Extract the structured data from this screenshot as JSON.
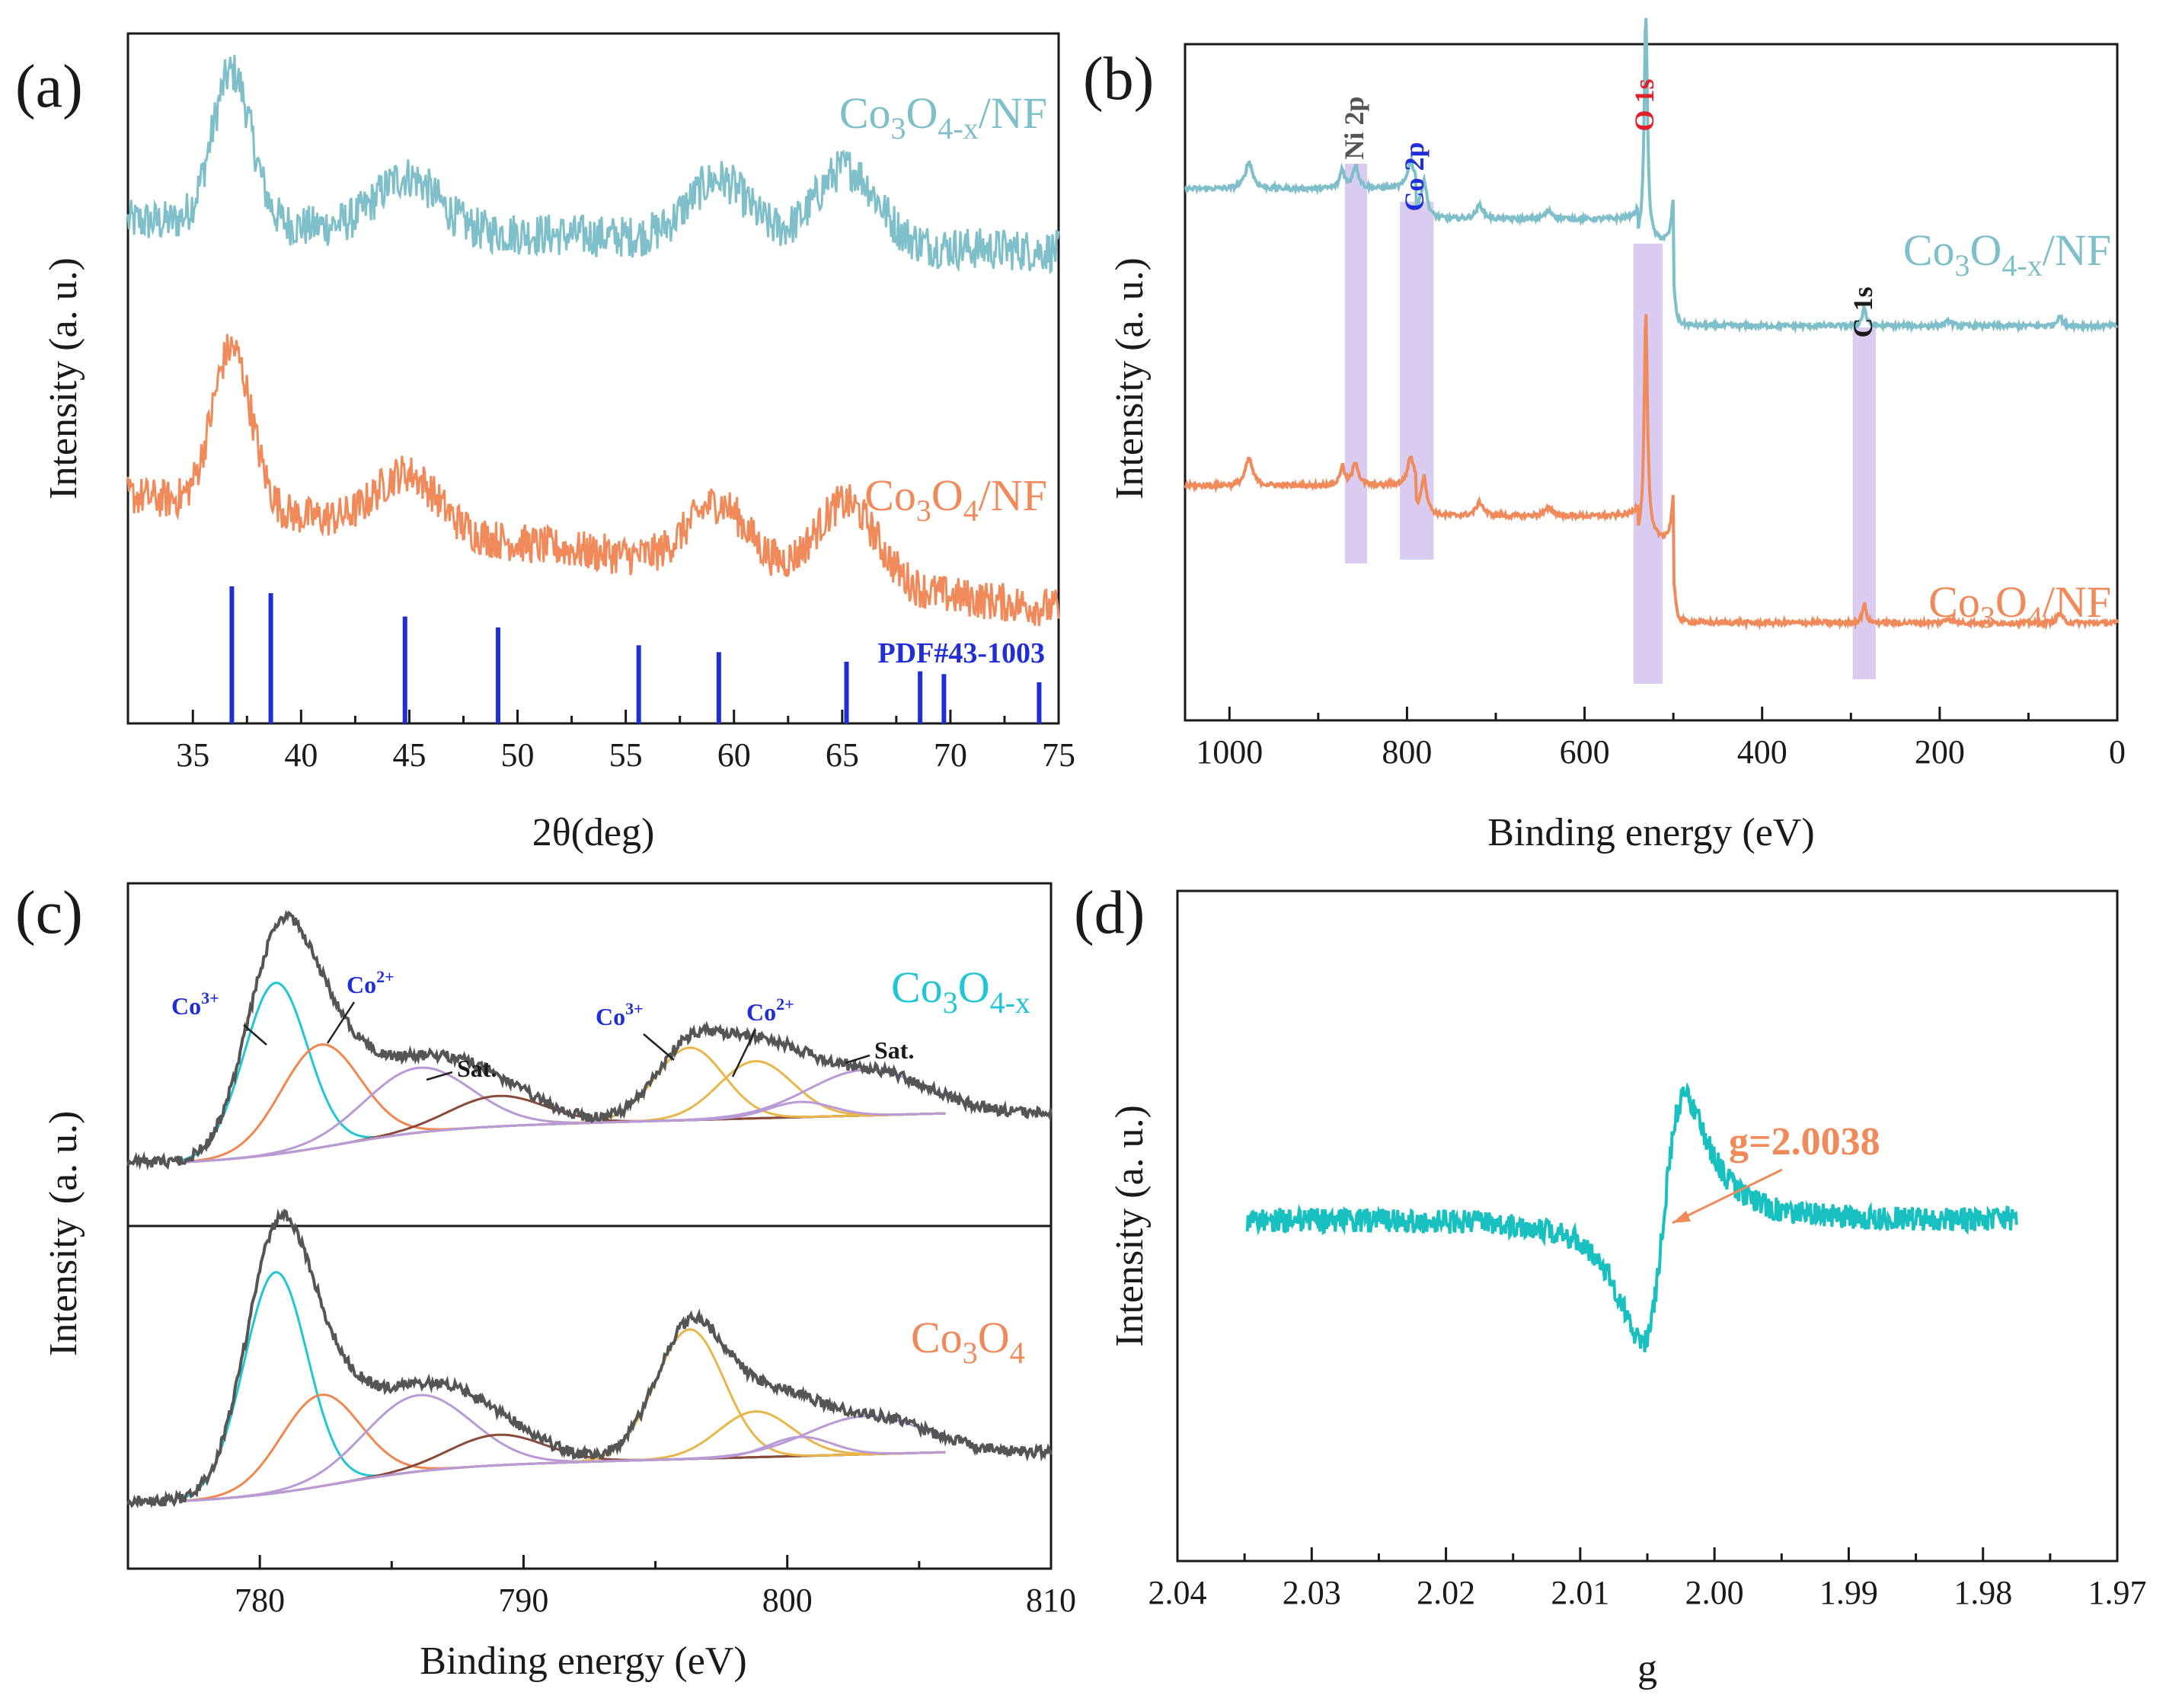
{
  "panels": {
    "a": {
      "label": "(a)"
    },
    "b": {
      "label": "(b)"
    },
    "c": {
      "label": "(c)"
    },
    "d": {
      "label": "(d)"
    }
  },
  "colors": {
    "blue_series": "#7fbfc9",
    "orange_series": "#f08a5a",
    "ref_lines": "#1f2ed6",
    "band": "#c9b6ea",
    "cyan_epr": "#19c0c0",
    "fit_cyan": "#21c6d4",
    "fit_orange": "#f0874f",
    "fit_purple": "#b89ad6",
    "fit_brown": "#8a4a3a",
    "fit_yellow": "#e8b64a",
    "fit_base": "#9a9a2a"
  },
  "chart_data": [
    {
      "id": "a",
      "type": "line",
      "xlabel": "2θ(deg)",
      "ylabel": "Intensity (a. u.)",
      "xlim": [
        32,
        75
      ],
      "xticks": [
        35,
        40,
        45,
        50,
        55,
        60,
        65,
        70,
        75
      ],
      "series": [
        {
          "name": "Co3O4-x/NF",
          "peaks": [
            [
              36.8,
              1.0
            ],
            [
              44.9,
              0.35
            ],
            [
              59.3,
              0.4
            ],
            [
              65.2,
              0.5
            ]
          ]
        },
        {
          "name": "Co3O4/NF",
          "peaks": [
            [
              36.8,
              1.0
            ],
            [
              44.9,
              0.35
            ],
            [
              59.3,
              0.4
            ],
            [
              65.2,
              0.5
            ]
          ]
        }
      ],
      "reference": {
        "name": "PDF#43-1003",
        "positions": [
          36.8,
          38.6,
          44.8,
          49.1,
          55.6,
          59.3,
          65.2,
          68.6,
          69.7,
          74.1
        ],
        "heights": [
          1.0,
          0.95,
          0.78,
          0.7,
          0.57,
          0.52,
          0.45,
          0.38,
          0.36,
          0.3
        ]
      },
      "legend": [
        {
          "main": "Co",
          "s1": "3",
          "mid": "O",
          "s2": "4-x",
          "tail": "/NF"
        },
        {
          "main": "Co",
          "s1": "3",
          "mid": "O",
          "s2": "4",
          "tail": "/NF"
        }
      ],
      "ref_label": "PDF#43-1003"
    },
    {
      "id": "b",
      "type": "line",
      "xlabel": "Binding energy (eV)",
      "ylabel": "Intensity (a. u.)",
      "xlim": [
        1050,
        0
      ],
      "xticks": [
        1000,
        800,
        600,
        400,
        200,
        0
      ],
      "peaks": [
        {
          "label": "Ni 2p",
          "x": 858,
          "color": "#555555"
        },
        {
          "label": "Co 2p",
          "x": 790,
          "color": "#1f2ed6"
        },
        {
          "label": "O 1s",
          "x": 531,
          "color": "#e0202a"
        },
        {
          "label": "C 1s",
          "x": 285,
          "color": "#1a1a1a"
        }
      ],
      "legend": [
        {
          "main": "Co",
          "s1": "3",
          "mid": "O",
          "s2": "4-x",
          "tail": "/NF"
        },
        {
          "main": "Co",
          "s1": "3",
          "mid": "O",
          "s2": "4",
          "tail": "/NF"
        }
      ]
    },
    {
      "id": "c",
      "type": "line",
      "xlabel": "Binding energy (eV)",
      "ylabel": "Intensity",
      "ylabel_top": "(a. u.)",
      "xlim": [
        775,
        810
      ],
      "xticks": [
        780,
        790,
        800,
        810
      ],
      "annotations": {
        "co3": "Co",
        "co3_sup": "3+",
        "co2": "Co",
        "co2_sup": "2+",
        "sat": "Sat."
      },
      "components_top": [
        {
          "name": "Co3+ 2p3/2",
          "center": 780.6,
          "height": 0.62
        },
        {
          "name": "Co2+ 2p3/2",
          "center": 782.5,
          "height": 0.45
        },
        {
          "name": "satellite 1",
          "center": 786.2,
          "height": 0.25
        },
        {
          "name": "satellite 2",
          "center": 789.0,
          "height": 0.12
        },
        {
          "name": "Co3+ 2p1/2",
          "center": 796.2,
          "height": 0.36
        },
        {
          "name": "Co2+ 2p1/2",
          "center": 798.8,
          "height": 0.2
        },
        {
          "name": "satellite 3",
          "center": 802.8,
          "height": 0.15
        }
      ],
      "legend": [
        {
          "main": "Co",
          "s1": "3",
          "mid": "O",
          "s2": "4-x",
          "tail": ""
        },
        {
          "main": "Co",
          "s1": "3",
          "mid": "O",
          "s2": "4",
          "tail": ""
        }
      ]
    },
    {
      "id": "d",
      "type": "line",
      "xlabel": "g",
      "ylabel": "Intensity (a. u.)",
      "xlim": [
        2.04,
        1.97
      ],
      "xticks": [
        "2.04",
        "2.03",
        "2.02",
        "2.01",
        "2.00",
        "1.99",
        "1.98",
        "1.97"
      ],
      "g_value": "g=2.0038",
      "signal_center": 2.0038
    }
  ]
}
